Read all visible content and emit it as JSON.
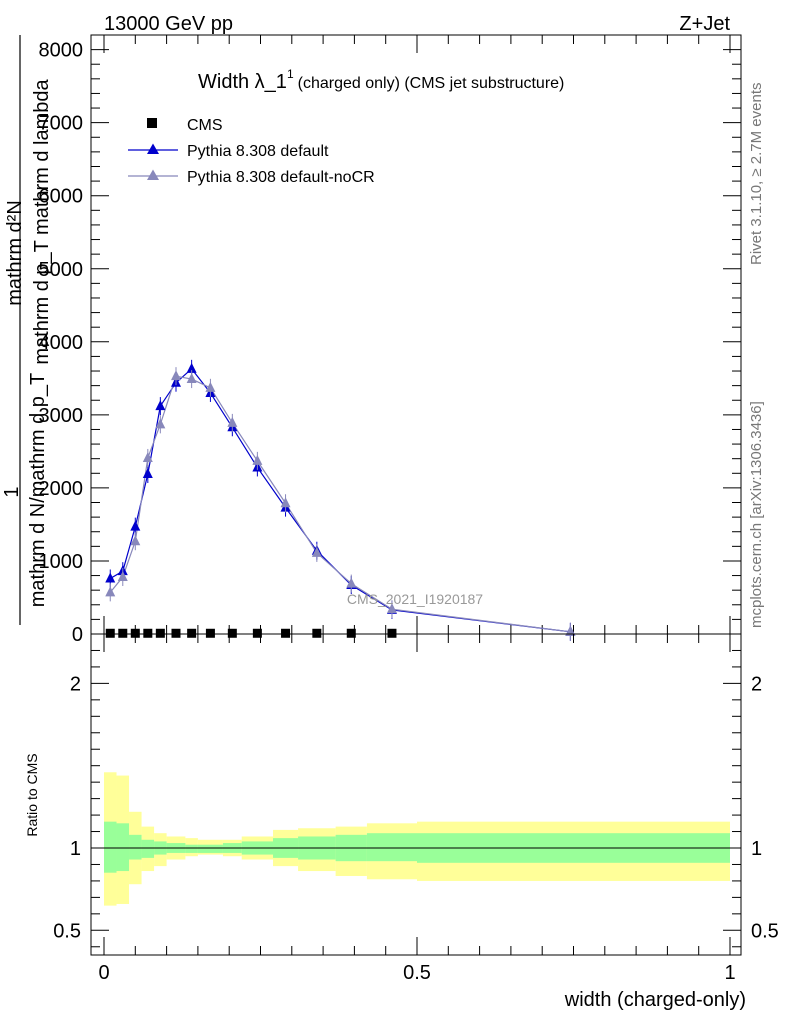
{
  "header": {
    "left": "13000 GeV pp",
    "right": "Z+Jet"
  },
  "side_labels": {
    "rivet": "Rivet 3.1.10, ≥ 2.7M events",
    "mcplots": "mcplots.cern.ch [arXiv:1306.3436]"
  },
  "chart_data": [
    {
      "type": "line",
      "title": "Width λ_1",
      "title_sup": "1",
      "subtitle": "(charged only) (CMS jet substructure)",
      "watermark": "CMS_2021_I1920187",
      "ylabel": {
        "numerator": "mathrm d²N",
        "numerator_extra": "mathrm d p_T mathrm d lambda",
        "one": "1",
        "denominator": "mathrm d N/mathrm d p_T"
      },
      "xlim": [
        0,
        1
      ],
      "ylim": [
        0,
        8200
      ],
      "yticks": [
        0,
        1000,
        2000,
        3000,
        4000,
        5000,
        6000,
        7000,
        8000
      ],
      "ytick_labels": [
        "0",
        "1000",
        "2000",
        "3000",
        "4000",
        "5000",
        "6000",
        "7000",
        "8000"
      ],
      "legend_position": "top-left",
      "series": [
        {
          "name": "CMS",
          "marker": "square",
          "color": "#000000",
          "x": [
            0.01,
            0.03,
            0.05,
            0.07,
            0.09,
            0.115,
            0.14,
            0.17,
            0.205,
            0.245,
            0.29,
            0.34,
            0.395,
            0.46
          ],
          "y": [
            10,
            10,
            10,
            10,
            10,
            10,
            10,
            10,
            10,
            10,
            10,
            10,
            10,
            10
          ]
        },
        {
          "name": "Pythia 8.308 default",
          "marker": "triangle",
          "color": "#0000cc",
          "x": [
            0.01,
            0.03,
            0.05,
            0.07,
            0.09,
            0.115,
            0.14,
            0.17,
            0.205,
            0.245,
            0.29,
            0.34,
            0.395,
            0.46,
            0.745
          ],
          "y": [
            760,
            860,
            1470,
            2190,
            3120,
            3440,
            3630,
            3300,
            2830,
            2280,
            1730,
            1140,
            670,
            330,
            30
          ]
        },
        {
          "name": "Pythia 8.308 default-noCR",
          "marker": "triangle",
          "color": "#8888bb",
          "x": [
            0.01,
            0.03,
            0.05,
            0.07,
            0.09,
            0.115,
            0.14,
            0.17,
            0.205,
            0.245,
            0.29,
            0.34,
            0.395,
            0.46,
            0.745
          ],
          "y": [
            570,
            780,
            1270,
            2410,
            2870,
            3530,
            3490,
            3370,
            2890,
            2370,
            1790,
            1110,
            690,
            340,
            30
          ]
        }
      ]
    },
    {
      "type": "area",
      "ylabel": "Ratio to CMS",
      "xlabel": "width (charged-only)",
      "xlim": [
        0,
        1
      ],
      "ylim": [
        0.35,
        2.3
      ],
      "xticks": [
        0,
        0.5,
        1
      ],
      "xtick_labels": [
        "0",
        "0.5",
        "1"
      ],
      "yticks": [
        0.5,
        1,
        2
      ],
      "ytick_labels": [
        "0.5",
        "1",
        "2"
      ],
      "reference_line": 1,
      "bin_edges": [
        0,
        0.02,
        0.04,
        0.06,
        0.08,
        0.1,
        0.13,
        0.15,
        0.19,
        0.22,
        0.27,
        0.31,
        0.37,
        0.42,
        0.5,
        1.0
      ],
      "band_inner": {
        "color": "#99ff99",
        "lo": [
          0.85,
          0.86,
          0.93,
          0.94,
          0.96,
          0.97,
          0.97,
          0.97,
          0.97,
          0.96,
          0.94,
          0.93,
          0.92,
          0.92,
          0.91
        ],
        "hi": [
          1.16,
          1.15,
          1.08,
          1.05,
          1.04,
          1.03,
          1.02,
          1.02,
          1.03,
          1.04,
          1.06,
          1.07,
          1.08,
          1.09,
          1.09
        ]
      },
      "band_outer": {
        "color": "#ffff99",
        "lo": [
          0.65,
          0.66,
          0.78,
          0.86,
          0.89,
          0.93,
          0.95,
          0.96,
          0.95,
          0.93,
          0.89,
          0.86,
          0.83,
          0.81,
          0.8
        ],
        "hi": [
          1.46,
          1.44,
          1.22,
          1.13,
          1.09,
          1.07,
          1.06,
          1.05,
          1.05,
          1.07,
          1.11,
          1.12,
          1.13,
          1.15,
          1.16
        ]
      }
    }
  ]
}
